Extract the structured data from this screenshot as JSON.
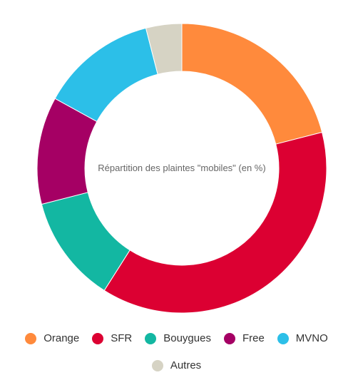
{
  "chart_data": {
    "type": "pie",
    "donut": true,
    "center_title": "Répartition des plaintes \"mobiles\" (en %)",
    "categories": [
      "Orange",
      "SFR",
      "Bouygues",
      "Free",
      "MVNO",
      "Autres"
    ],
    "values": [
      21,
      38,
      12,
      12,
      13,
      4
    ],
    "colors": [
      "#ff8a3c",
      "#dc0032",
      "#13b7a2",
      "#a50064",
      "#2cbfe8",
      "#d6d3c4"
    ],
    "legend": {
      "placement": "bottom",
      "row1": [
        {
          "label": "Orange",
          "color": "#ff8a3c"
        },
        {
          "label": "SFR",
          "color": "#dc0032"
        },
        {
          "label": "Bouygues",
          "color": "#13b7a2"
        },
        {
          "label": "Free",
          "color": "#a50064"
        },
        {
          "label": "MVNO",
          "color": "#2cbfe8"
        }
      ],
      "row2": [
        {
          "label": "Autres",
          "color": "#d6d3c4"
        }
      ]
    }
  }
}
